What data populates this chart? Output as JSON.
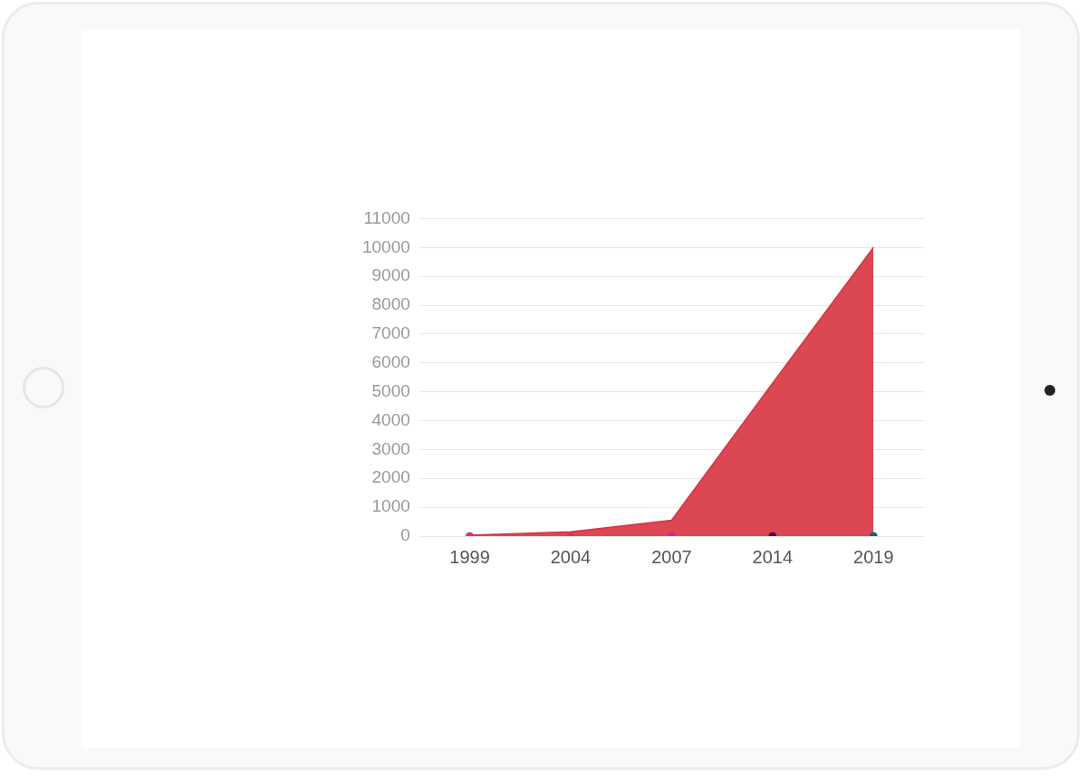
{
  "chart_data": {
    "type": "area",
    "categories": [
      "1999",
      "2004",
      "2007",
      "2014",
      "2019"
    ],
    "series": [
      {
        "color": "#d7333f",
        "values": [
          30,
          150,
          550,
          5300,
          10000
        ]
      },
      {
        "type": "scatter",
        "colors": [
          "#e0306a",
          "#e0306a",
          "#e020a0",
          "#50106a",
          "#1f5a8a"
        ],
        "values": [
          0,
          0,
          0,
          0,
          0
        ],
        "marker": "circle"
      }
    ],
    "ylim": [
      0,
      11000
    ],
    "yticks": [
      0,
      1000,
      2000,
      3000,
      4000,
      5000,
      6000,
      7000,
      8000,
      9000,
      10000,
      11000
    ],
    "grid": "y"
  }
}
